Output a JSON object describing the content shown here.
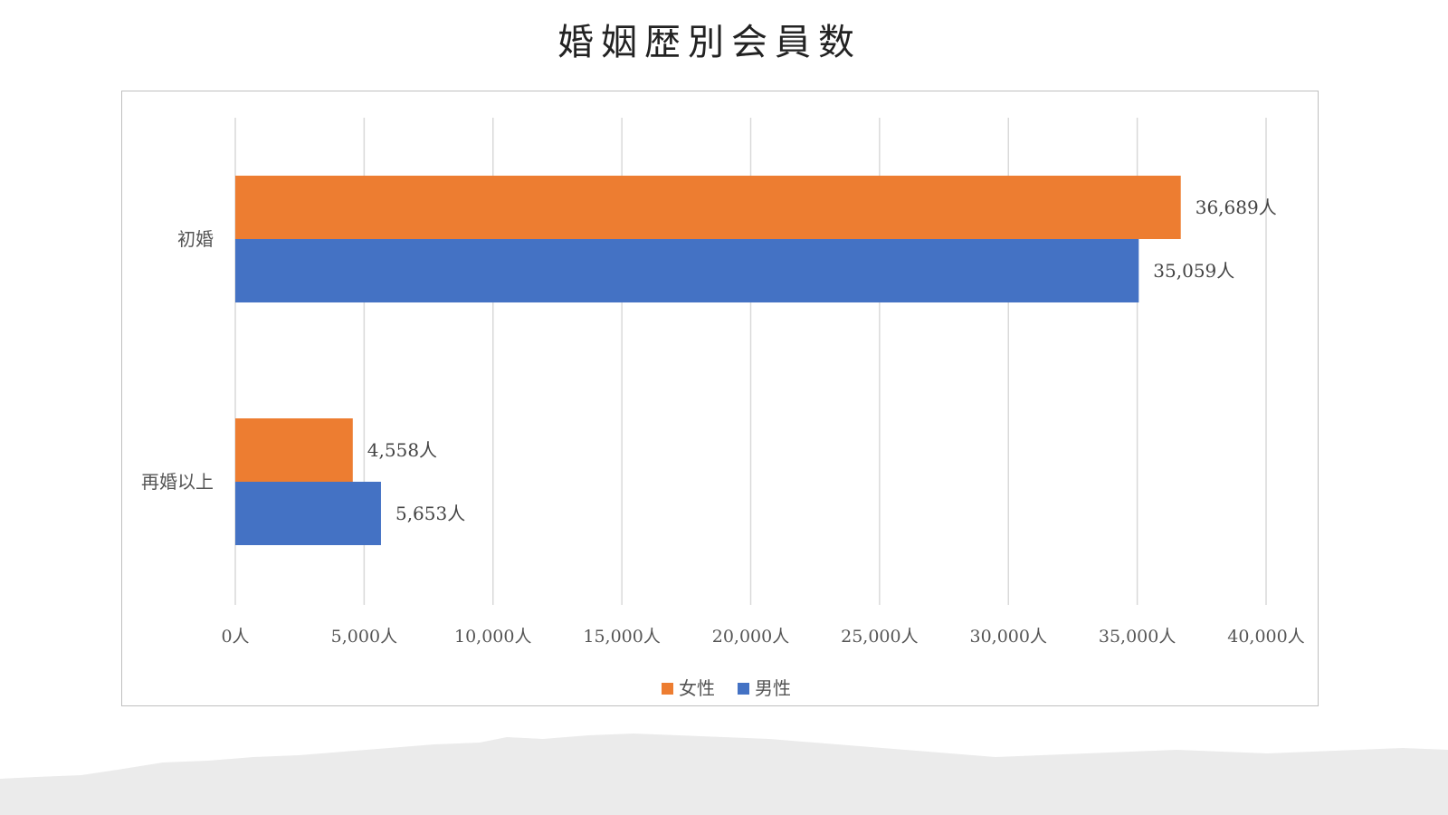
{
  "page": {
    "title": "婚姻歴別会員数"
  },
  "chart_data": {
    "type": "bar",
    "orientation": "horizontal",
    "title": "",
    "xlabel": "",
    "ylabel": "",
    "categories": [
      "初婚",
      "再婚以上"
    ],
    "series": [
      {
        "name": "女性",
        "color": "#ED7D31",
        "values": [
          36689,
          4558
        ],
        "labels": [
          "36,689人",
          "4,558人"
        ]
      },
      {
        "name": "男性",
        "color": "#4472C4",
        "values": [
          35059,
          5653
        ],
        "labels": [
          "35,059人",
          "5,653人"
        ]
      }
    ],
    "xlim": [
      0,
      40000
    ],
    "ticks": [
      0,
      5000,
      10000,
      15000,
      20000,
      25000,
      30000,
      35000,
      40000
    ],
    "tick_labels": [
      "0人",
      "5,000人",
      "10,000人",
      "15,000人",
      "20,000人",
      "25,000人",
      "30,000人",
      "35,000人",
      "40,000人"
    ],
    "grid": "vertical",
    "legend": "bottom"
  }
}
